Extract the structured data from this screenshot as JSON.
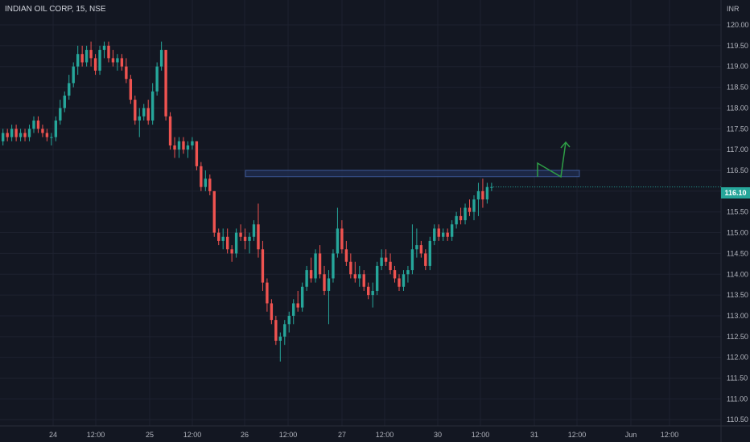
{
  "symbol_title": "INDIAN OIL CORP, 15, NSE",
  "currency_label": "INR",
  "current_price": "116.10",
  "colors": {
    "background": "#131722",
    "up": "#26a69a",
    "down": "#ef5350",
    "grid": "#1e2230",
    "axis_text": "#b2b5be",
    "zone_fill": "#1e2a4a",
    "zone_border": "#3d5a99",
    "arrow": "#2e9e46"
  },
  "chart_data": {
    "type": "candlestick",
    "title": "INDIAN OIL CORP, 15, NSE",
    "ylabel": "INR",
    "ylim": [
      110.35,
      120.6
    ],
    "y_ticks": [
      "110.50",
      "111.00",
      "111.50",
      "112.00",
      "112.50",
      "113.00",
      "113.50",
      "114.00",
      "114.50",
      "115.00",
      "115.50",
      "116.00",
      "116.50",
      "117.00",
      "117.50",
      "118.00",
      "118.50",
      "119.00",
      "119.50",
      "120.00"
    ],
    "x_ticks": [
      "24",
      "12:00",
      "25",
      "12:00",
      "26",
      "12:00",
      "27",
      "12:00",
      "30",
      "12:00",
      "31",
      "12:00",
      "Jun",
      "12:00"
    ],
    "resistance_zone": [
      116.35,
      116.5
    ],
    "candles": [
      [
        117.2,
        117.5,
        117.1,
        117.4
      ],
      [
        117.4,
        117.5,
        117.2,
        117.3
      ],
      [
        117.3,
        117.6,
        117.2,
        117.5
      ],
      [
        117.5,
        117.6,
        117.2,
        117.3
      ],
      [
        117.3,
        117.5,
        117.2,
        117.4
      ],
      [
        117.4,
        117.5,
        117.2,
        117.3
      ],
      [
        117.3,
        117.6,
        117.2,
        117.5
      ],
      [
        117.5,
        117.8,
        117.4,
        117.7
      ],
      [
        117.7,
        117.8,
        117.4,
        117.5
      ],
      [
        117.5,
        117.6,
        117.3,
        117.4
      ],
      [
        117.4,
        117.5,
        117.2,
        117.3
      ],
      [
        117.3,
        117.4,
        117.1,
        117.3
      ],
      [
        117.3,
        117.8,
        117.2,
        117.7
      ],
      [
        117.7,
        118.2,
        117.6,
        118.0
      ],
      [
        118.0,
        118.4,
        117.9,
        118.3
      ],
      [
        118.3,
        118.8,
        118.2,
        118.6
      ],
      [
        118.6,
        119.1,
        118.5,
        119.0
      ],
      [
        119.0,
        119.5,
        118.8,
        119.3
      ],
      [
        119.3,
        119.5,
        119.0,
        119.1
      ],
      [
        119.1,
        119.5,
        119.0,
        119.4
      ],
      [
        119.4,
        119.6,
        119.0,
        119.2
      ],
      [
        119.2,
        119.3,
        118.8,
        118.9
      ],
      [
        118.9,
        119.5,
        118.8,
        119.4
      ],
      [
        119.4,
        119.6,
        119.2,
        119.5
      ],
      [
        119.5,
        119.6,
        119.1,
        119.2
      ],
      [
        119.2,
        119.4,
        119.0,
        119.1
      ],
      [
        119.1,
        119.3,
        118.9,
        119.2
      ],
      [
        119.2,
        119.3,
        118.9,
        119.0
      ],
      [
        119.0,
        119.2,
        118.6,
        118.7
      ],
      [
        118.7,
        118.8,
        118.1,
        118.2
      ],
      [
        118.2,
        118.3,
        117.6,
        117.7
      ],
      [
        117.7,
        118.0,
        117.3,
        117.8
      ],
      [
        117.8,
        118.1,
        117.7,
        118.0
      ],
      [
        118.0,
        118.2,
        117.6,
        117.7
      ],
      [
        117.7,
        118.6,
        117.6,
        118.4
      ],
      [
        118.4,
        119.1,
        118.3,
        119.0
      ],
      [
        119.0,
        119.6,
        118.9,
        119.4
      ],
      [
        119.4,
        119.4,
        117.7,
        117.8
      ],
      [
        117.8,
        117.9,
        117.0,
        117.1
      ],
      [
        117.1,
        117.3,
        116.8,
        117.0
      ],
      [
        117.0,
        117.3,
        116.8,
        117.2
      ],
      [
        117.2,
        117.3,
        116.9,
        117.0
      ],
      [
        117.0,
        117.2,
        116.8,
        117.1
      ],
      [
        117.1,
        117.3,
        117.0,
        117.2
      ],
      [
        117.2,
        117.2,
        116.5,
        116.6
      ],
      [
        116.6,
        116.7,
        116.0,
        116.1
      ],
      [
        116.1,
        116.5,
        116.0,
        116.3
      ],
      [
        116.3,
        116.4,
        115.9,
        116.0
      ],
      [
        116.0,
        116.0,
        114.9,
        115.0
      ],
      [
        115.0,
        115.1,
        114.7,
        114.8
      ],
      [
        114.8,
        115.1,
        114.6,
        114.9
      ],
      [
        114.9,
        115.1,
        114.5,
        114.6
      ],
      [
        114.6,
        114.7,
        114.3,
        114.5
      ],
      [
        114.5,
        115.1,
        114.4,
        115.0
      ],
      [
        115.0,
        115.2,
        114.8,
        114.9
      ],
      [
        114.9,
        115.1,
        114.6,
        114.8
      ],
      [
        114.8,
        115.0,
        114.5,
        114.9
      ],
      [
        114.9,
        115.3,
        114.8,
        115.2
      ],
      [
        115.2,
        115.7,
        114.4,
        114.6
      ],
      [
        114.6,
        114.8,
        113.6,
        113.8
      ],
      [
        113.8,
        113.9,
        113.1,
        113.3
      ],
      [
        113.3,
        113.4,
        112.8,
        112.9
      ],
      [
        112.9,
        113.0,
        112.3,
        112.4
      ],
      [
        112.4,
        112.6,
        111.9,
        112.5
      ],
      [
        112.5,
        112.9,
        112.3,
        112.8
      ],
      [
        112.8,
        113.1,
        112.6,
        113.0
      ],
      [
        113.0,
        113.4,
        112.8,
        113.3
      ],
      [
        113.3,
        113.6,
        113.1,
        113.2
      ],
      [
        113.2,
        113.8,
        113.1,
        113.7
      ],
      [
        113.7,
        114.2,
        113.6,
        114.1
      ],
      [
        114.1,
        114.4,
        113.8,
        113.9
      ],
      [
        113.9,
        114.6,
        113.8,
        114.5
      ],
      [
        114.5,
        114.7,
        113.9,
        114.0
      ],
      [
        114.0,
        114.2,
        113.5,
        113.6
      ],
      [
        113.6,
        114.1,
        112.8,
        113.9
      ],
      [
        113.9,
        114.6,
        113.8,
        114.5
      ],
      [
        114.5,
        115.6,
        114.4,
        115.1
      ],
      [
        115.1,
        115.3,
        114.5,
        114.6
      ],
      [
        114.6,
        114.8,
        114.2,
        114.3
      ],
      [
        114.3,
        114.5,
        113.9,
        114.0
      ],
      [
        114.0,
        114.3,
        113.8,
        113.9
      ],
      [
        113.9,
        114.2,
        113.7,
        114.0
      ],
      [
        114.0,
        114.1,
        113.6,
        113.7
      ],
      [
        113.7,
        113.8,
        113.4,
        113.5
      ],
      [
        113.5,
        113.8,
        113.2,
        113.6
      ],
      [
        113.6,
        114.3,
        113.5,
        114.2
      ],
      [
        114.2,
        114.6,
        114.1,
        114.4
      ],
      [
        114.4,
        114.6,
        114.2,
        114.3
      ],
      [
        114.3,
        114.5,
        114.0,
        114.1
      ],
      [
        114.1,
        114.2,
        113.8,
        113.9
      ],
      [
        113.9,
        114.0,
        113.6,
        113.7
      ],
      [
        113.7,
        114.1,
        113.6,
        114.0
      ],
      [
        114.0,
        114.2,
        113.8,
        114.1
      ],
      [
        114.1,
        115.2,
        114.0,
        114.6
      ],
      [
        114.6,
        115.1,
        114.4,
        114.7
      ],
      [
        114.7,
        114.8,
        114.4,
        114.5
      ],
      [
        114.5,
        114.6,
        114.1,
        114.2
      ],
      [
        114.2,
        114.9,
        114.1,
        114.8
      ],
      [
        114.8,
        115.2,
        114.7,
        115.1
      ],
      [
        115.1,
        115.2,
        114.8,
        114.9
      ],
      [
        114.9,
        115.1,
        114.8,
        115.0
      ],
      [
        115.0,
        115.1,
        114.8,
        114.9
      ],
      [
        114.9,
        115.3,
        114.8,
        115.2
      ],
      [
        115.2,
        115.5,
        115.1,
        115.4
      ],
      [
        115.4,
        115.6,
        115.2,
        115.3
      ],
      [
        115.3,
        115.7,
        115.2,
        115.6
      ],
      [
        115.6,
        115.8,
        115.4,
        115.5
      ],
      [
        115.5,
        115.9,
        115.3,
        115.8
      ],
      [
        115.8,
        116.2,
        115.4,
        116.0
      ],
      [
        116.0,
        116.3,
        115.6,
        115.8
      ],
      [
        115.8,
        116.2,
        115.7,
        116.1
      ],
      [
        116.1,
        116.2,
        116.0,
        116.1
      ]
    ]
  }
}
